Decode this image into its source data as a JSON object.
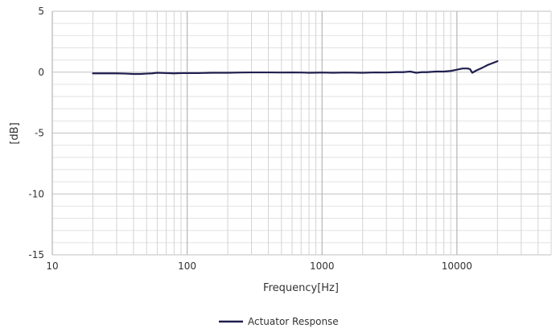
{
  "chart_data": {
    "type": "line",
    "title": "",
    "xlabel": "Frequency[Hz]",
    "ylabel": "[dB]",
    "x_scale": "log",
    "xlim": [
      10,
      50000
    ],
    "ylim": [
      -15,
      5
    ],
    "grid": true,
    "legend_position": "bottom-center",
    "x_tick_labels": [
      "10",
      "100",
      "1000",
      "10000"
    ],
    "y_tick_labels": [
      "5",
      "0",
      "-5",
      "-10",
      "-15"
    ],
    "series": [
      {
        "name": "Actuator Response",
        "color": "#1f1f4f",
        "points": [
          [
            20,
            -0.1
          ],
          [
            25,
            -0.1
          ],
          [
            30,
            -0.1
          ],
          [
            35,
            -0.12
          ],
          [
            40,
            -0.15
          ],
          [
            45,
            -0.15
          ],
          [
            50,
            -0.12
          ],
          [
            55,
            -0.1
          ],
          [
            60,
            -0.05
          ],
          [
            70,
            -0.08
          ],
          [
            80,
            -0.1
          ],
          [
            90,
            -0.08
          ],
          [
            100,
            -0.08
          ],
          [
            120,
            -0.08
          ],
          [
            150,
            -0.05
          ],
          [
            200,
            -0.05
          ],
          [
            250,
            -0.03
          ],
          [
            300,
            -0.02
          ],
          [
            400,
            -0.02
          ],
          [
            500,
            -0.03
          ],
          [
            600,
            -0.02
          ],
          [
            700,
            -0.03
          ],
          [
            800,
            -0.05
          ],
          [
            900,
            -0.04
          ],
          [
            1000,
            -0.03
          ],
          [
            1200,
            -0.05
          ],
          [
            1500,
            -0.03
          ],
          [
            2000,
            -0.05
          ],
          [
            2500,
            -0.02
          ],
          [
            3000,
            -0.03
          ],
          [
            3500,
            0.0
          ],
          [
            4000,
            0.0
          ],
          [
            4500,
            0.05
          ],
          [
            5000,
            -0.05
          ],
          [
            5500,
            0.0
          ],
          [
            6000,
            0.0
          ],
          [
            7000,
            0.05
          ],
          [
            8000,
            0.05
          ],
          [
            9000,
            0.1
          ],
          [
            10000,
            0.2
          ],
          [
            11000,
            0.3
          ],
          [
            12000,
            0.3
          ],
          [
            12500,
            0.25
          ],
          [
            13000,
            -0.05
          ],
          [
            14000,
            0.15
          ],
          [
            15000,
            0.3
          ],
          [
            16000,
            0.45
          ],
          [
            17000,
            0.6
          ],
          [
            18000,
            0.7
          ],
          [
            20000,
            0.9
          ]
        ]
      }
    ]
  }
}
